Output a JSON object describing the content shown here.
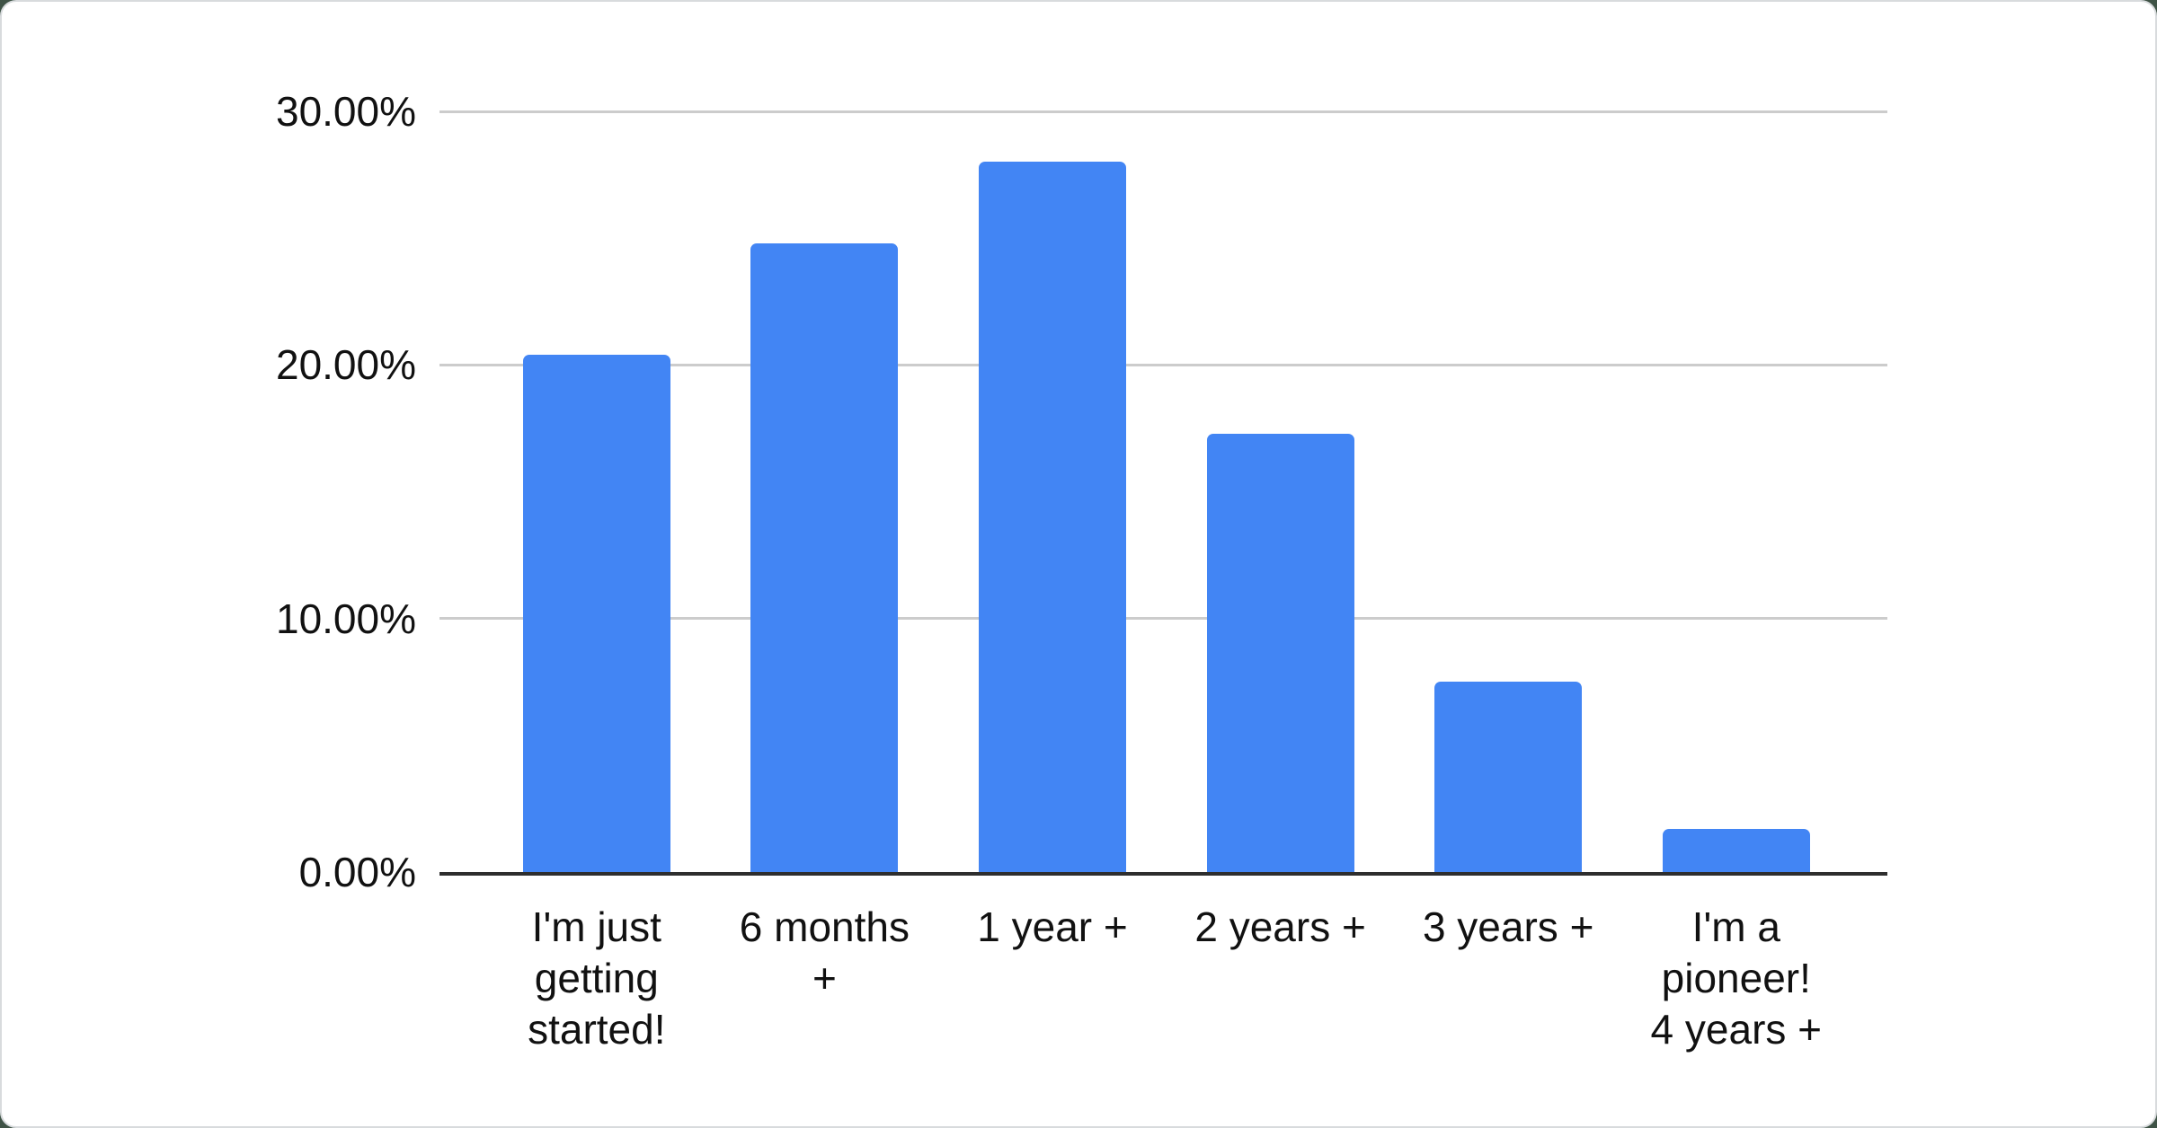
{
  "page": {
    "background_color": "#3f5346",
    "card_color": "#ffffff",
    "card_border_color": "#d8dbdd"
  },
  "chart_data": {
    "type": "bar",
    "title": "",
    "xlabel": "",
    "ylabel": "",
    "categories": [
      "I'm just getting started!",
      "6 months +",
      "1 year +",
      "2 years +",
      "3 years +",
      "I'm a pioneer! 4 years +"
    ],
    "category_label_lines": [
      [
        "I'm just",
        "getting",
        "started!"
      ],
      [
        "6 months",
        "+"
      ],
      [
        "1 year +"
      ],
      [
        "2 years +"
      ],
      [
        "3 years +"
      ],
      [
        "I'm a",
        "pioneer!",
        "4 years +"
      ]
    ],
    "values": [
      20.4,
      24.8,
      28.0,
      17.3,
      7.5,
      1.7
    ],
    "value_unit": "%",
    "y_ticks": [
      "30.00%",
      "20.00%",
      "10.00%",
      "0.00%"
    ],
    "y_tick_values": [
      30,
      20,
      10,
      0
    ],
    "ylim": [
      0,
      30
    ],
    "grid": true,
    "legend_position": "none",
    "bar_color": "#4285f4",
    "gridline_color": "#cccccc",
    "axis_line_color": "#2e2e2e",
    "label_color": "#111111"
  }
}
